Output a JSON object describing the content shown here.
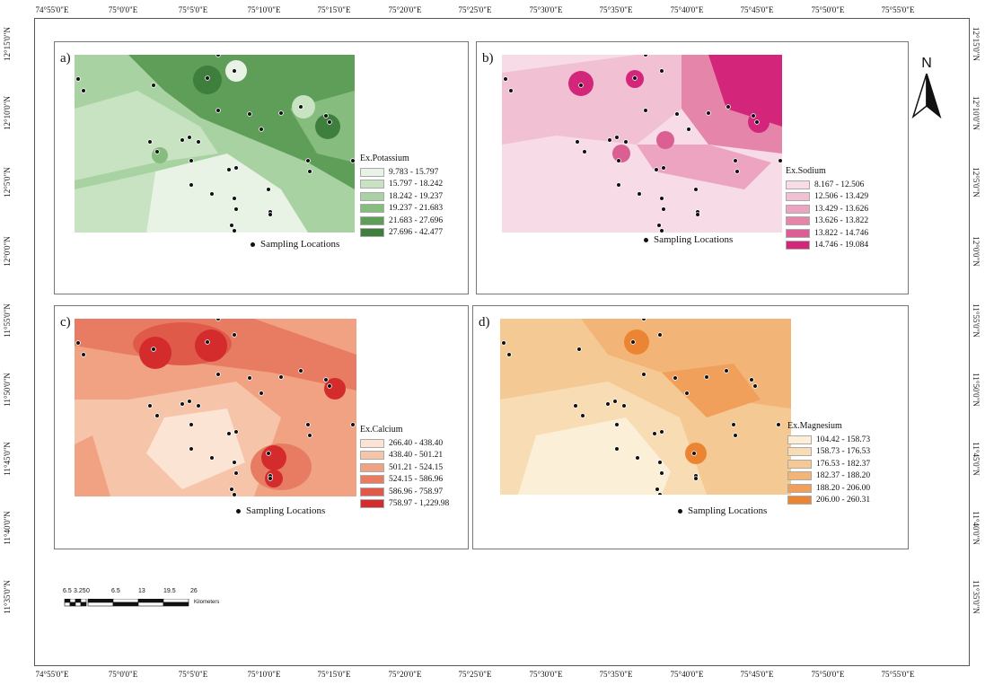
{
  "axes": {
    "top_ticks": [
      "74°55'0\"E",
      "75°0'0\"E",
      "75°5'0\"E",
      "75°10'0\"E",
      "75°15'0\"E",
      "75°20'0\"E",
      "75°25'0\"E",
      "75°30'0\"E",
      "75°35'0\"E",
      "75°40'0\"E",
      "75°45'0\"E",
      "75°50'0\"E",
      "75°55'0\"E"
    ],
    "bottom_ticks": [
      "74°55'0\"E",
      "75°0'0\"E",
      "75°5'0\"E",
      "75°10'0\"E",
      "75°15'0\"E",
      "75°20'0\"E",
      "75°25'0\"E",
      "75°30'0\"E",
      "75°35'0\"E",
      "75°40'0\"E",
      "75°45'0\"E",
      "75°50'0\"E",
      "75°55'0\"E"
    ],
    "left_ticks": [
      "12°15'0\"N",
      "12°10'0\"N",
      "12°5'0\"N",
      "12°0'0\"N",
      "11°55'0\"N",
      "11°50'0\"N",
      "11°45'0\"N",
      "11°40'0\"N",
      "11°35'0\"N"
    ],
    "right_ticks": [
      "12°15'0\"N",
      "12°10'0\"N",
      "12°5'0\"N",
      "12°0'0\"N",
      "11°55'0\"N",
      "11°50'0\"N",
      "11°45'0\"N",
      "11°40'0\"N",
      "11°35'0\"N"
    ]
  },
  "panels": [
    {
      "label": "a)",
      "legend_title": "Ex.Potassium",
      "classes": [
        "9.783 - 15.797",
        "15.797 - 18.242",
        "18.242 - 19.237",
        "19.237 - 21.683",
        "21.683 - 27.696",
        "27.696 - 42.477"
      ],
      "colors": [
        "#e8f3e6",
        "#c7e3c2",
        "#a8d2a1",
        "#86bd7f",
        "#5f9e59",
        "#3f7f3d"
      ],
      "sampling_label": "Sampling Locations"
    },
    {
      "label": "b)",
      "legend_title": "Ex.Sodium",
      "classes": [
        "8.167 - 12.506",
        "12.506 - 13.429",
        "13.429 - 13.626",
        "13.626 - 13.822",
        "13.822 - 14.746",
        "14.746 - 19.084"
      ],
      "colors": [
        "#f7dbe6",
        "#f2c0d3",
        "#eca4c0",
        "#e585aa",
        "#dc5f93",
        "#d3267a"
      ],
      "sampling_label": "Sampling Locations"
    },
    {
      "label": "c)",
      "legend_title": "Ex.Calcium",
      "classes": [
        "266.40 - 438.40",
        "438.40 - 501.21",
        "501.21 - 524.15",
        "524.15 - 586.96",
        "586.96 - 758.97",
        "758.97 - 1,229.98"
      ],
      "colors": [
        "#fbe4d4",
        "#f6c4a8",
        "#f0a283",
        "#e87c63",
        "#e05a49",
        "#d42c2c"
      ],
      "sampling_label": "Sampling Locations"
    },
    {
      "label": "d)",
      "legend_title": "Ex.Magnesium",
      "classes": [
        "104.42 - 158.73",
        "158.73 - 176.53",
        "176.53 - 182.37",
        "182.37 - 188.20",
        "188.20 - 206.00",
        "206.00 - 260.31"
      ],
      "colors": [
        "#fbefd8",
        "#f8dcb4",
        "#f5c994",
        "#f3b577",
        "#f0a05a",
        "#ec8533"
      ],
      "sampling_label": "Sampling Locations"
    }
  ],
  "north_arrow": {
    "label": "N"
  },
  "scale_bar": {
    "labels": [
      "6.5",
      "3.25",
      "0",
      "6.5",
      "13",
      "19.5",
      "26"
    ],
    "unit": "Kilometers"
  }
}
